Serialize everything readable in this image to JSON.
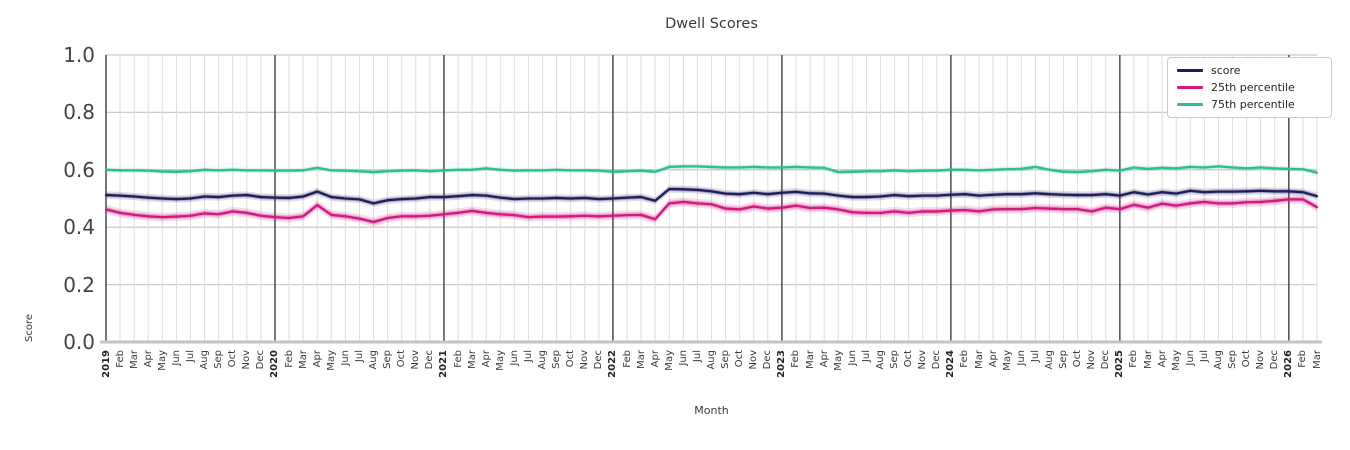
{
  "title": "Dwell Scores",
  "axes": {
    "x_label": "Month",
    "y_label": "Score",
    "y_ticks": [
      "1.0",
      "0.8",
      "0.6",
      "0.4",
      "0.2",
      "0.0"
    ]
  },
  "legend": {
    "position": "upper right",
    "items": [
      "score",
      "25th percentile",
      "75th percentile"
    ]
  },
  "colors": {
    "score": "#211e5c",
    "p25": "#d1197e",
    "p75": "#2fbe8f",
    "grid_minor": "#dedede",
    "grid_major": "#cccccc",
    "year_line": "#3f3f3f"
  },
  "chart_data": {
    "type": "line",
    "title": "Dwell Scores",
    "xlabel": "Month",
    "ylabel": "Score",
    "ylim": [
      0.0,
      1.0
    ],
    "grid": true,
    "legend_position": "upper right",
    "x_range": [
      "2019-01",
      "2026-03"
    ],
    "categories": [
      "2019",
      "Feb",
      "Mar",
      "Apr",
      "May",
      "Jun",
      "Jul",
      "Aug",
      "Sep",
      "Oct",
      "Nov",
      "Dec",
      "2020",
      "Feb",
      "Mar",
      "Apr",
      "May",
      "Jun",
      "Jul",
      "Aug",
      "Sep",
      "Oct",
      "Nov",
      "Dec",
      "2021",
      "Feb",
      "Mar",
      "Apr",
      "May",
      "Jun",
      "Jul",
      "Aug",
      "Sep",
      "Oct",
      "Nov",
      "Dec",
      "2022",
      "Feb",
      "Mar",
      "Apr",
      "May",
      "Jun",
      "Jul",
      "Aug",
      "Sep",
      "Oct",
      "Nov",
      "Dec",
      "2023",
      "Feb",
      "Mar",
      "Apr",
      "May",
      "Jun",
      "Jul",
      "Aug",
      "Sep",
      "Oct",
      "Nov",
      "Dec",
      "2024",
      "Feb",
      "Mar",
      "Apr",
      "May",
      "Jun",
      "Jul",
      "Aug",
      "Sep",
      "Oct",
      "Nov",
      "Dec",
      "2025",
      "Feb",
      "Mar",
      "Apr",
      "May",
      "Jun",
      "Jul",
      "Aug",
      "Sep",
      "Oct",
      "Nov",
      "Dec",
      "2026",
      "Feb",
      "Mar"
    ],
    "series": [
      {
        "name": "score",
        "color": "#211e5c",
        "band": 0.013,
        "values": [
          0.512,
          0.51,
          0.507,
          0.503,
          0.5,
          0.498,
          0.5,
          0.507,
          0.505,
          0.51,
          0.512,
          0.505,
          0.503,
          0.502,
          0.507,
          0.524,
          0.505,
          0.5,
          0.497,
          0.483,
          0.494,
          0.498,
          0.5,
          0.505,
          0.505,
          0.508,
          0.512,
          0.51,
          0.503,
          0.498,
          0.5,
          0.5,
          0.502,
          0.5,
          0.502,
          0.498,
          0.5,
          0.503,
          0.505,
          0.492,
          0.533,
          0.532,
          0.53,
          0.525,
          0.517,
          0.515,
          0.52,
          0.515,
          0.52,
          0.523,
          0.518,
          0.517,
          0.51,
          0.505,
          0.505,
          0.507,
          0.512,
          0.508,
          0.51,
          0.51,
          0.513,
          0.515,
          0.51,
          0.513,
          0.515,
          0.515,
          0.518,
          0.515,
          0.513,
          0.512,
          0.512,
          0.515,
          0.51,
          0.522,
          0.514,
          0.522,
          0.517,
          0.527,
          0.522,
          0.524,
          0.524,
          0.525,
          0.527,
          0.525,
          0.525,
          0.522,
          0.508
        ]
      },
      {
        "name": "25th percentile",
        "color": "#d1197e",
        "band": 0.016,
        "values": [
          0.462,
          0.45,
          0.443,
          0.438,
          0.435,
          0.437,
          0.44,
          0.448,
          0.445,
          0.455,
          0.45,
          0.44,
          0.435,
          0.432,
          0.438,
          0.477,
          0.443,
          0.438,
          0.43,
          0.418,
          0.432,
          0.438,
          0.438,
          0.44,
          0.445,
          0.45,
          0.457,
          0.45,
          0.445,
          0.442,
          0.435,
          0.437,
          0.437,
          0.438,
          0.44,
          0.438,
          0.44,
          0.442,
          0.443,
          0.428,
          0.483,
          0.488,
          0.483,
          0.48,
          0.465,
          0.462,
          0.472,
          0.465,
          0.468,
          0.475,
          0.467,
          0.468,
          0.462,
          0.452,
          0.45,
          0.45,
          0.455,
          0.45,
          0.455,
          0.455,
          0.458,
          0.46,
          0.455,
          0.462,
          0.463,
          0.463,
          0.467,
          0.465,
          0.463,
          0.463,
          0.455,
          0.468,
          0.463,
          0.478,
          0.468,
          0.482,
          0.475,
          0.483,
          0.488,
          0.483,
          0.483,
          0.487,
          0.488,
          0.492,
          0.497,
          0.497,
          0.47
        ]
      },
      {
        "name": "75th percentile",
        "color": "#2fbe8f",
        "band": 0.009,
        "values": [
          0.6,
          0.598,
          0.598,
          0.597,
          0.594,
          0.593,
          0.595,
          0.6,
          0.598,
          0.6,
          0.598,
          0.598,
          0.597,
          0.597,
          0.598,
          0.607,
          0.598,
          0.597,
          0.595,
          0.592,
          0.595,
          0.597,
          0.598,
          0.595,
          0.598,
          0.6,
          0.6,
          0.605,
          0.6,
          0.597,
          0.598,
          0.598,
          0.6,
          0.598,
          0.598,
          0.597,
          0.593,
          0.595,
          0.597,
          0.593,
          0.61,
          0.612,
          0.612,
          0.61,
          0.608,
          0.608,
          0.61,
          0.608,
          0.608,
          0.61,
          0.608,
          0.607,
          0.592,
          0.593,
          0.595,
          0.595,
          0.598,
          0.595,
          0.597,
          0.597,
          0.6,
          0.6,
          0.598,
          0.6,
          0.602,
          0.603,
          0.61,
          0.6,
          0.593,
          0.592,
          0.595,
          0.6,
          0.597,
          0.608,
          0.603,
          0.607,
          0.605,
          0.61,
          0.608,
          0.612,
          0.608,
          0.605,
          0.608,
          0.605,
          0.603,
          0.602,
          0.59
        ]
      }
    ]
  }
}
